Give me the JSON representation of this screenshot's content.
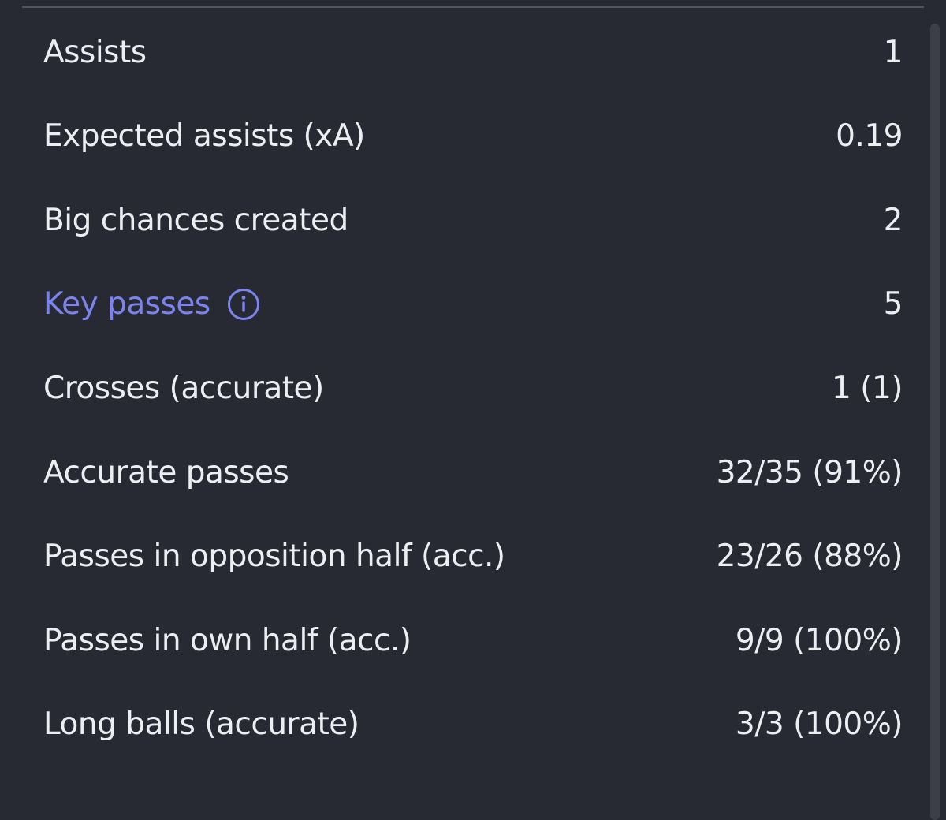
{
  "stats": {
    "rows": [
      {
        "label": "Assists",
        "value": "1"
      },
      {
        "label": "Expected assists (xA)",
        "value": "0.19"
      },
      {
        "label": "Big chances created",
        "value": "2"
      },
      {
        "label": "Key passes",
        "value": "5",
        "link": true
      },
      {
        "label": "Crosses (accurate)",
        "value": "1 (1)"
      },
      {
        "label": "Accurate passes",
        "value": "32/35 (91%)"
      },
      {
        "label": "Passes in opposition half (acc.)",
        "value": "23/26 (88%)"
      },
      {
        "label": "Passes in own half (acc.)",
        "value": "9/9 (100%)"
      },
      {
        "label": "Long balls (accurate)",
        "value": "3/3 (100%)"
      }
    ]
  }
}
